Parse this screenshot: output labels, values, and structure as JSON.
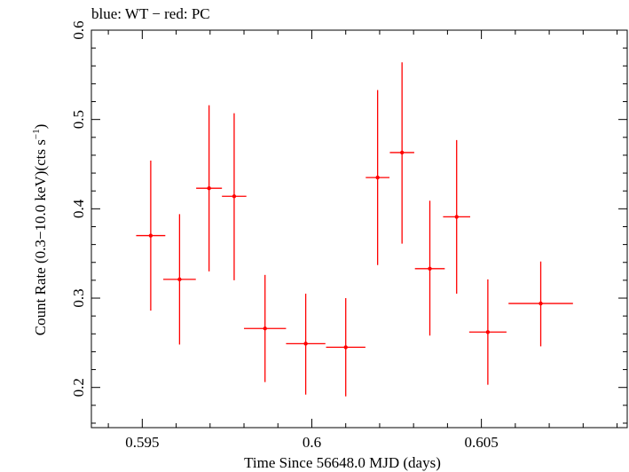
{
  "chart_data": {
    "type": "scatter",
    "title": "blue: WT − red: PC",
    "xlabel": "Time Since 56648.0 MJD (days)",
    "ylabel_main": "Count Rate (0.3−10.0 keV)(cts s",
    "ylabel_sup": "−1",
    "ylabel_close": ")",
    "xlim": [
      0.5935,
      0.6093
    ],
    "ylim": [
      0.155,
      0.6
    ],
    "xticks": [
      0.595,
      0.6,
      0.605
    ],
    "xtick_labels": [
      "0.595",
      "0.6",
      "0.605"
    ],
    "yticks": [
      0.2,
      0.3,
      0.4,
      0.5,
      0.6
    ],
    "ytick_labels": [
      "0.2",
      "0.3",
      "0.4",
      "0.5",
      "0.6"
    ],
    "grid": false,
    "series": [
      {
        "color": "#ff0000",
        "points": [
          {
            "x": 0.59525,
            "xerr": 0.00043,
            "y": 0.37,
            "ylo": 0.286,
            "yhi": 0.454
          },
          {
            "x": 0.5961,
            "xerr": 0.00048,
            "y": 0.321,
            "ylo": 0.248,
            "yhi": 0.394
          },
          {
            "x": 0.59697,
            "xerr": 0.00038,
            "y": 0.423,
            "ylo": 0.33,
            "yhi": 0.516
          },
          {
            "x": 0.59771,
            "xerr": 0.00036,
            "y": 0.414,
            "ylo": 0.32,
            "yhi": 0.507
          },
          {
            "x": 0.59862,
            "xerr": 0.00062,
            "y": 0.266,
            "ylo": 0.206,
            "yhi": 0.326
          },
          {
            "x": 0.59982,
            "xerr": 0.00058,
            "y": 0.249,
            "ylo": 0.192,
            "yhi": 0.305
          },
          {
            "x": 0.601,
            "xerr": 0.00058,
            "y": 0.245,
            "ylo": 0.19,
            "yhi": 0.3
          },
          {
            "x": 0.60194,
            "xerr": 0.00035,
            "y": 0.435,
            "ylo": 0.337,
            "yhi": 0.533
          },
          {
            "x": 0.60266,
            "xerr": 0.00036,
            "y": 0.463,
            "ylo": 0.361,
            "yhi": 0.564
          },
          {
            "x": 0.60348,
            "xerr": 0.00044,
            "y": 0.333,
            "ylo": 0.258,
            "yhi": 0.409
          },
          {
            "x": 0.60427,
            "xerr": 0.0004,
            "y": 0.391,
            "ylo": 0.305,
            "yhi": 0.477
          },
          {
            "x": 0.60519,
            "xerr": 0.00055,
            "y": 0.262,
            "ylo": 0.203,
            "yhi": 0.321
          },
          {
            "x": 0.60675,
            "xerr": 0.00095,
            "y": 0.294,
            "ylo": 0.246,
            "yhi": 0.341
          }
        ]
      }
    ]
  }
}
